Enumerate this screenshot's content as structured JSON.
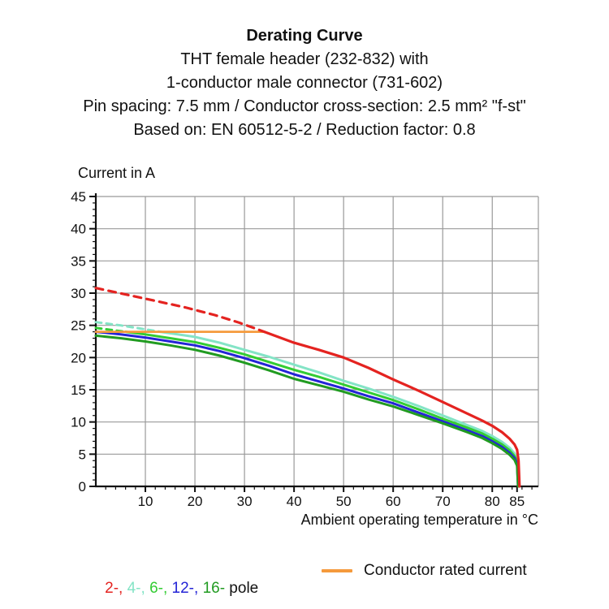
{
  "title": {
    "heading": "Derating Curve",
    "lines": [
      "THT female header (232-832) with",
      "1-conductor male connector  (731-602)",
      "Pin spacing: 7.5 mm / Conductor cross-section: 2.5 mm² \"f-st\"",
      "Based on: EN 60512-5-2 / Reduction factor: 0.8"
    ]
  },
  "chart_data": {
    "type": "line",
    "title": "Derating Curve",
    "ylabel": "Current in A",
    "xlabel": "Ambient operating temperature in °C",
    "xlim": [
      0,
      89.3
    ],
    "ylim": [
      0,
      45
    ],
    "grid": true,
    "x_major_ticks": [
      10,
      20,
      30,
      40,
      50,
      60,
      70,
      80,
      85
    ],
    "x_gridlines": [
      10,
      20,
      30,
      40,
      50,
      60,
      70,
      80
    ],
    "x_minor_step": 2,
    "y_major_step": 5,
    "y_minor_step": 1,
    "colors": {
      "grid": "#999999",
      "axis": "#111111"
    },
    "series": [
      {
        "name": "4-pole",
        "color": "#84e4c6",
        "width": 3,
        "dash_pattern": "7,6",
        "dash_points": [
          [
            0,
            25.5
          ],
          [
            5,
            25.0
          ],
          [
            9,
            24.5
          ],
          [
            13,
            24.0
          ]
        ],
        "points": [
          [
            13,
            24.0
          ],
          [
            20,
            23.2
          ],
          [
            25,
            22.3
          ],
          [
            30,
            21.2
          ],
          [
            35,
            20.1
          ],
          [
            40,
            18.9
          ],
          [
            45,
            17.7
          ],
          [
            50,
            16.4
          ],
          [
            55,
            15.2
          ],
          [
            60,
            13.9
          ],
          [
            65,
            12.5
          ],
          [
            70,
            11.0
          ],
          [
            75,
            9.5
          ],
          [
            78,
            8.6
          ],
          [
            80,
            7.8
          ],
          [
            82,
            6.9
          ],
          [
            83.5,
            6.0
          ],
          [
            84.5,
            5.1
          ],
          [
            85,
            4.3
          ],
          [
            85.2,
            2.5
          ],
          [
            85.3,
            0
          ]
        ]
      },
      {
        "name": "6-pole",
        "color": "#33cc33",
        "width": 3,
        "dash_pattern": "7,6",
        "dash_points": [
          [
            0,
            24.6
          ],
          [
            3,
            24.3
          ],
          [
            6,
            24.0
          ]
        ],
        "points": [
          [
            6,
            24.0
          ],
          [
            10,
            23.6
          ],
          [
            15,
            23.0
          ],
          [
            20,
            22.4
          ],
          [
            25,
            21.5
          ],
          [
            30,
            20.5
          ],
          [
            35,
            19.3
          ],
          [
            40,
            18.1
          ],
          [
            45,
            17.0
          ],
          [
            50,
            15.8
          ],
          [
            55,
            14.6
          ],
          [
            60,
            13.4
          ],
          [
            65,
            12.0
          ],
          [
            70,
            10.5
          ],
          [
            75,
            9.1
          ],
          [
            78,
            8.2
          ],
          [
            80,
            7.4
          ],
          [
            82,
            6.5
          ],
          [
            83.5,
            5.6
          ],
          [
            84.5,
            4.7
          ],
          [
            85,
            3.9
          ],
          [
            85.2,
            2.2
          ],
          [
            85.3,
            0
          ]
        ]
      },
      {
        "name": "12-pole",
        "color": "#2424d6",
        "width": 3,
        "points": [
          [
            0,
            24.0
          ],
          [
            5,
            23.6
          ],
          [
            10,
            23.1
          ],
          [
            15,
            22.5
          ],
          [
            20,
            21.9
          ],
          [
            25,
            21.0
          ],
          [
            30,
            19.9
          ],
          [
            35,
            18.7
          ],
          [
            40,
            17.4
          ],
          [
            45,
            16.3
          ],
          [
            50,
            15.2
          ],
          [
            55,
            14.0
          ],
          [
            60,
            12.9
          ],
          [
            65,
            11.5
          ],
          [
            70,
            10.1
          ],
          [
            75,
            8.7
          ],
          [
            78,
            7.8
          ],
          [
            80,
            7.0
          ],
          [
            82,
            6.1
          ],
          [
            83.5,
            5.2
          ],
          [
            84.5,
            4.4
          ],
          [
            85,
            3.5
          ],
          [
            85.1,
            1.8
          ],
          [
            85.2,
            0
          ]
        ]
      },
      {
        "name": "16-pole",
        "color": "#219b21",
        "width": 3,
        "points": [
          [
            0,
            23.4
          ],
          [
            5,
            23.0
          ],
          [
            10,
            22.5
          ],
          [
            15,
            21.9
          ],
          [
            20,
            21.2
          ],
          [
            25,
            20.3
          ],
          [
            30,
            19.2
          ],
          [
            35,
            18.0
          ],
          [
            40,
            16.7
          ],
          [
            45,
            15.7
          ],
          [
            50,
            14.7
          ],
          [
            55,
            13.5
          ],
          [
            60,
            12.4
          ],
          [
            65,
            11.1
          ],
          [
            70,
            9.8
          ],
          [
            75,
            8.4
          ],
          [
            78,
            7.5
          ],
          [
            80,
            6.7
          ],
          [
            82,
            5.8
          ],
          [
            83.5,
            4.9
          ],
          [
            84.5,
            4.1
          ],
          [
            85,
            3.2
          ],
          [
            85.1,
            1.6
          ],
          [
            85.2,
            0
          ]
        ]
      },
      {
        "name": "conductor-rated-current",
        "color": "#f59a3c",
        "width": 2.8,
        "points": [
          [
            0,
            24
          ],
          [
            34,
            24
          ]
        ]
      },
      {
        "name": "2-pole",
        "color": "#e42320",
        "width": 3.2,
        "dash_pattern": "9,7",
        "dash_points": [
          [
            0,
            30.8
          ],
          [
            6,
            29.8
          ],
          [
            12,
            28.8
          ],
          [
            18,
            27.8
          ],
          [
            24,
            26.6
          ],
          [
            29,
            25.4
          ],
          [
            34,
            24.0
          ]
        ],
        "points": [
          [
            34,
            24.0
          ],
          [
            40,
            22.3
          ],
          [
            45,
            21.2
          ],
          [
            50,
            20.0
          ],
          [
            55,
            18.4
          ],
          [
            60,
            16.6
          ],
          [
            65,
            14.9
          ],
          [
            70,
            13.1
          ],
          [
            75,
            11.3
          ],
          [
            78,
            10.2
          ],
          [
            80,
            9.4
          ],
          [
            82,
            8.4
          ],
          [
            83.5,
            7.4
          ],
          [
            84.5,
            6.5
          ],
          [
            85,
            5.7
          ],
          [
            85.3,
            4.0
          ],
          [
            85.5,
            0
          ]
        ]
      }
    ]
  },
  "legend": {
    "poles": [
      {
        "label": "2-,",
        "color": "#e42320"
      },
      {
        "label": "4-,",
        "color": "#84e4c6"
      },
      {
        "label": "6-,",
        "color": "#33cc33"
      },
      {
        "label": "12-,",
        "color": "#2424d6"
      },
      {
        "label": "16-",
        "color": "#219b21"
      }
    ],
    "pole_word": " pole",
    "rated_label": "Conductor rated current",
    "rated_color": "#f59a3c"
  }
}
